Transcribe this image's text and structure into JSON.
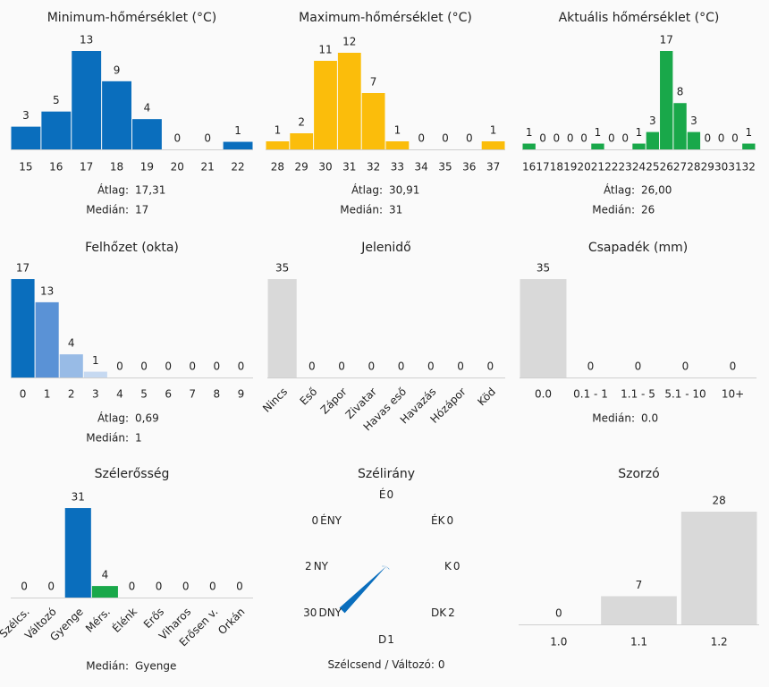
{
  "chart_data": [
    {
      "type": "bar",
      "title": "Minimum-hőmérséklet (°C)",
      "color": "#0a6ebd",
      "categories": [
        15,
        16,
        17,
        18,
        19,
        20,
        21,
        22
      ],
      "values": [
        3,
        5,
        13,
        9,
        4,
        0,
        0,
        1
      ],
      "stats": [
        {
          "label": "Átlag:",
          "value": "17,31"
        },
        {
          "label": "Medián:",
          "value": "17"
        }
      ]
    },
    {
      "type": "bar",
      "title": "Maximum-hőmérséklet (°C)",
      "color": "#fbbd0b",
      "categories": [
        28,
        29,
        30,
        31,
        32,
        33,
        34,
        35,
        36,
        37
      ],
      "values": [
        1,
        2,
        11,
        12,
        7,
        1,
        0,
        0,
        0,
        1
      ],
      "stats": [
        {
          "label": "Átlag:",
          "value": "30,91"
        },
        {
          "label": "Medián:",
          "value": "31"
        }
      ]
    },
    {
      "type": "bar",
      "title": "Aktuális hőmérséklet (°C)",
      "color": "#19a84a",
      "categories": [
        16,
        17,
        18,
        19,
        20,
        21,
        22,
        23,
        24,
        25,
        26,
        27,
        28,
        29,
        30,
        31,
        32
      ],
      "values": [
        1,
        0,
        0,
        0,
        0,
        1,
        0,
        0,
        1,
        3,
        17,
        8,
        3,
        0,
        0,
        0,
        1
      ],
      "stats": [
        {
          "label": "Átlag:",
          "value": "26,00"
        },
        {
          "label": "Medián:",
          "value": "26"
        }
      ]
    },
    {
      "type": "bar",
      "title": "Felhőzet (okta)",
      "color": "#0a6ebd",
      "colors": [
        "#0a6ebd",
        "#5a92d6",
        "#98bbe6",
        "#c6d9f1",
        "#c6d9f1",
        "#c6d9f1",
        "#c6d9f1",
        "#c6d9f1",
        "#c6d9f1",
        "#c6d9f1"
      ],
      "categories": [
        0,
        1,
        2,
        3,
        4,
        5,
        6,
        7,
        8,
        9
      ],
      "values": [
        17,
        13,
        4,
        1,
        0,
        0,
        0,
        0,
        0,
        0
      ],
      "stats": [
        {
          "label": "Átlag:",
          "value": "0,69"
        },
        {
          "label": "Medián:",
          "value": "1"
        }
      ]
    },
    {
      "type": "bar",
      "title": "Jelenidő",
      "color": "#d9d9d9",
      "categories": [
        "Nincs",
        "Eső",
        "Zápor",
        "Zivatar",
        "Havas eső",
        "Havazás",
        "Hózápor",
        "Köd"
      ],
      "values": [
        35,
        0,
        0,
        0,
        0,
        0,
        0,
        0
      ]
    },
    {
      "type": "bar",
      "title": "Csapadék (mm)",
      "color": "#d9d9d9",
      "categories": [
        "0.0",
        "0.1 - 1",
        "1.1 - 5",
        "5.1 - 10",
        "10+"
      ],
      "values": [
        35,
        0,
        0,
        0,
        0
      ],
      "stats": [
        {
          "label": "Medián:",
          "value": "0.0"
        }
      ]
    },
    {
      "type": "bar",
      "title": "Szélerősség",
      "color": "#0a6ebd",
      "colors": [
        "#0a6ebd",
        "#0a6ebd",
        "#0a6ebd",
        "#19a84a",
        "#0a6ebd",
        "#0a6ebd",
        "#0a6ebd",
        "#0a6ebd",
        "#0a6ebd"
      ],
      "categories": [
        "Szélcs.",
        "Változó",
        "Gyenge",
        "Mérs.",
        "Élénk",
        "Erős",
        "Viharos",
        "Erősen v.",
        "Orkán"
      ],
      "values": [
        0,
        0,
        31,
        4,
        0,
        0,
        0,
        0,
        0
      ],
      "stats": [
        {
          "label": "Medián:",
          "value": "Gyenge"
        }
      ]
    },
    {
      "type": "rose",
      "title": "Szélirány",
      "color": "#0a6ebd",
      "categories": [
        "É",
        "ÉK",
        "K",
        "DK",
        "D",
        "DNY",
        "NY",
        "ÉNY"
      ],
      "values": [
        0,
        0,
        0,
        2,
        1,
        30,
        2,
        0
      ],
      "footer": {
        "label": "Szélcsend / Változó:",
        "value": "0"
      }
    },
    {
      "type": "bar",
      "title": "Szorzó",
      "color": "#d9d9d9",
      "categories": [
        "1.0",
        "1.1",
        "1.2"
      ],
      "values": [
        0,
        7,
        28
      ]
    }
  ]
}
